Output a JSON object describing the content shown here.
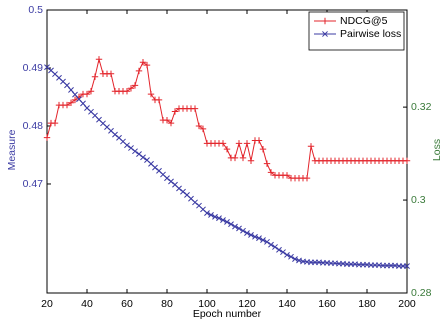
{
  "chart_data": {
    "type": "line",
    "xlabel": "Epoch number",
    "ylabel": "Measure",
    "y2label": "Loss",
    "x": [
      20,
      22,
      24,
      26,
      28,
      30,
      32,
      34,
      36,
      38,
      40,
      42,
      44,
      46,
      48,
      50,
      52,
      54,
      56,
      58,
      60,
      62,
      64,
      66,
      68,
      70,
      72,
      74,
      76,
      78,
      80,
      82,
      84,
      86,
      88,
      90,
      92,
      94,
      96,
      98,
      100,
      102,
      104,
      106,
      108,
      110,
      112,
      114,
      116,
      118,
      120,
      122,
      124,
      126,
      128,
      130,
      132,
      134,
      136,
      138,
      140,
      142,
      144,
      146,
      148,
      150,
      152,
      154,
      156,
      158,
      160,
      162,
      164,
      166,
      168,
      170,
      172,
      174,
      176,
      178,
      180,
      182,
      184,
      186,
      188,
      190,
      192,
      194,
      196,
      198,
      200
    ],
    "series": [
      {
        "name": "NDCG@5",
        "color": "#e3242b",
        "marker": "+",
        "axis": "y",
        "values": [
          0.478,
          0.4805,
          0.4805,
          0.4836,
          0.4836,
          0.4836,
          0.484,
          0.4845,
          0.485,
          0.4855,
          0.4855,
          0.486,
          0.4885,
          0.4915,
          0.489,
          0.489,
          0.489,
          0.486,
          0.486,
          0.486,
          0.486,
          0.4865,
          0.487,
          0.4895,
          0.491,
          0.4905,
          0.4855,
          0.4845,
          0.4845,
          0.481,
          0.481,
          0.4805,
          0.4825,
          0.483,
          0.483,
          0.483,
          0.483,
          0.483,
          0.48,
          0.4795,
          0.477,
          0.477,
          0.477,
          0.477,
          0.477,
          0.476,
          0.4745,
          0.4745,
          0.477,
          0.4745,
          0.477,
          0.474,
          0.4775,
          0.4775,
          0.476,
          0.4735,
          0.472,
          0.4715,
          0.4715,
          0.4715,
          0.4715,
          0.471,
          0.471,
          0.471,
          0.471,
          0.471,
          0.4765,
          0.474,
          0.474,
          0.474,
          0.474,
          0.474,
          0.474,
          0.474,
          0.474,
          0.474,
          0.474,
          0.474,
          0.474,
          0.474,
          0.474,
          0.474,
          0.474,
          0.474,
          0.474,
          0.474,
          0.474,
          0.474,
          0.474,
          0.474,
          0.474
        ]
      },
      {
        "name": "Pairwise loss",
        "color": "#3b3ba3",
        "marker": "x",
        "axis": "y2",
        "values": [
          0.3286,
          0.3279,
          0.3271,
          0.3263,
          0.3255,
          0.3247,
          0.3237,
          0.3227,
          0.3217,
          0.3208,
          0.3198,
          0.319,
          0.3182,
          0.3173,
          0.3165,
          0.3157,
          0.3149,
          0.3141,
          0.3134,
          0.3126,
          0.3118,
          0.3112,
          0.3105,
          0.3099,
          0.3092,
          0.3086,
          0.3078,
          0.307,
          0.3063,
          0.3055,
          0.3047,
          0.304,
          0.3033,
          0.3025,
          0.3018,
          0.3011,
          0.3003,
          0.2995,
          0.2988,
          0.298,
          0.2972,
          0.2968,
          0.2964,
          0.2961,
          0.2957,
          0.2953,
          0.2948,
          0.2943,
          0.2939,
          0.2934,
          0.2929,
          0.2925,
          0.2921,
          0.2918,
          0.2914,
          0.291,
          0.2904,
          0.2899,
          0.2893,
          0.2888,
          0.2882,
          0.2878,
          0.2873,
          0.287,
          0.2868,
          0.2867,
          0.2866,
          0.2866,
          0.2866,
          0.2865,
          0.2865,
          0.2864,
          0.2864,
          0.2863,
          0.2863,
          0.2862,
          0.2862,
          0.2862,
          0.2861,
          0.2861,
          0.2861,
          0.286,
          0.286,
          0.286,
          0.2859,
          0.2859,
          0.2859,
          0.2859,
          0.2858,
          0.2858,
          0.2858
        ]
      }
    ],
    "xlim": [
      20,
      200
    ],
    "xticks": [
      20,
      40,
      60,
      80,
      100,
      120,
      140,
      160,
      180,
      200
    ],
    "ylim": [
      0.4512,
      0.5
    ],
    "yticks": [
      0.47,
      0.48,
      0.49,
      0.5
    ],
    "y2lim": [
      0.28,
      0.3409
    ],
    "y2ticks": [
      0.28,
      0.3,
      0.32
    ],
    "ytick_color": "#3b3ba3",
    "y2tick_color": "#3a7a3a",
    "legend": "upper right"
  }
}
